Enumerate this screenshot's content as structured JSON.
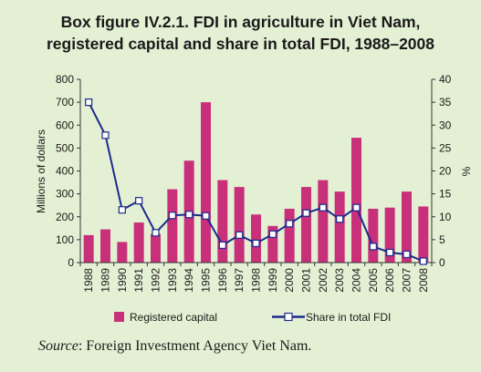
{
  "figure": {
    "title_line1": "Box figure IV.2.1. FDI in agriculture in Viet Nam,",
    "title_line2": "registered capital and share in total FDI, 1988–2008",
    "source_label": "Source",
    "source_text": ": Foreign Investment Agency Viet Nam."
  },
  "chart_data": {
    "type": "bar+line",
    "categories": [
      "1988",
      "1989",
      "1990",
      "1991",
      "1992",
      "1993",
      "1994",
      "1995",
      "1996",
      "1997",
      "1998",
      "1999",
      "2000",
      "2001",
      "2002",
      "2003",
      "2004",
      "2005",
      "2006",
      "2007",
      "2008"
    ],
    "series": [
      {
        "name": "Registered capital",
        "type": "bar",
        "axis": "left",
        "color": "#c8317a",
        "values": [
          120,
          145,
          90,
          175,
          125,
          320,
          445,
          700,
          360,
          330,
          210,
          160,
          235,
          330,
          360,
          310,
          545,
          235,
          240,
          310,
          245
        ]
      },
      {
        "name": "Share in total FDI",
        "type": "line",
        "axis": "right",
        "color": "#1b2a8c",
        "values": [
          35,
          27.8,
          11.5,
          13.5,
          6.5,
          10.3,
          10.5,
          10.2,
          3.8,
          6.0,
          4.2,
          6.2,
          8.5,
          10.8,
          12.0,
          9.5,
          12.0,
          3.5,
          2.2,
          1.8,
          0.3
        ]
      }
    ],
    "y_left": {
      "label": "Millions of dollars",
      "min": 0,
      "max": 800,
      "ticks": [
        0,
        100,
        200,
        300,
        400,
        500,
        600,
        700,
        800
      ]
    },
    "y_right": {
      "label": "%",
      "min": 0,
      "max": 40,
      "ticks": [
        0,
        5,
        10,
        15,
        20,
        25,
        30,
        35,
        40
      ]
    },
    "legend": {
      "position": "bottom"
    },
    "grid": false
  }
}
